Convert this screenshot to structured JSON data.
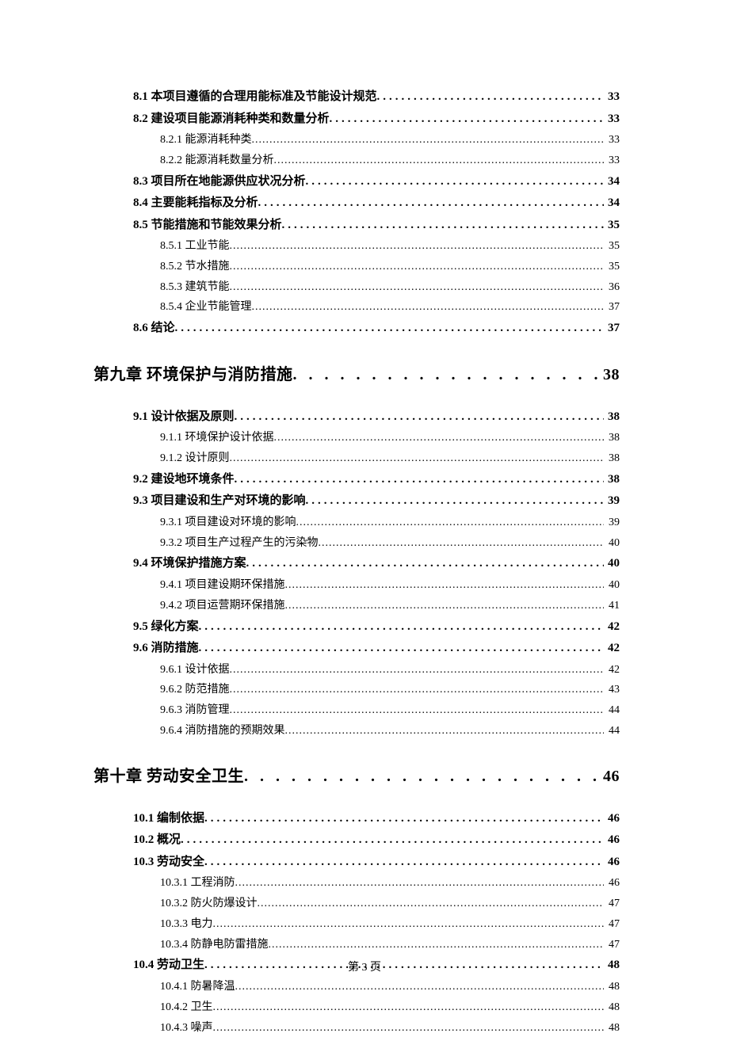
{
  "toc": [
    {
      "level": "lvl-1",
      "title": "8.1 本项目遵循的合理用能标准及节能设计规范",
      "page": "33"
    },
    {
      "level": "lvl-1",
      "title": "8.2 建设项目能源消耗种类和数量分析",
      "page": "33"
    },
    {
      "level": "lvl-2",
      "title": "8.2.1 能源消耗种类",
      "page": "33"
    },
    {
      "level": "lvl-2",
      "title": "8.2.2 能源消耗数量分析",
      "page": "33"
    },
    {
      "level": "lvl-1",
      "title": "8.3 项目所在地能源供应状况分析",
      "page": "34"
    },
    {
      "level": "lvl-1",
      "title": "8.4 主要能耗指标及分析",
      "page": "34"
    },
    {
      "level": "lvl-1",
      "title": "8.5 节能措施和节能效果分析",
      "page": "35"
    },
    {
      "level": "lvl-2",
      "title": "8.5.1 工业节能",
      "page": "35"
    },
    {
      "level": "lvl-2",
      "title": "8.5.2 节水措施",
      "page": "35"
    },
    {
      "level": "lvl-2",
      "title": "8.5.3 建筑节能",
      "page": "36"
    },
    {
      "level": "lvl-2",
      "title": "8.5.4 企业节能管理",
      "page": "37"
    },
    {
      "level": "lvl-1",
      "title": "8.6 结论",
      "page": "37"
    },
    {
      "level": "lvl-chapter",
      "title": "第九章  环境保护与消防措施",
      "page": "38"
    },
    {
      "level": "lvl-1",
      "title": "9.1 设计依据及原则",
      "page": "38"
    },
    {
      "level": "lvl-2",
      "title": "9.1.1 环境保护设计依据",
      "page": "38"
    },
    {
      "level": "lvl-2",
      "title": "9.1.2 设计原则",
      "page": "38"
    },
    {
      "level": "lvl-1",
      "title": "9.2 建设地环境条件",
      "page": "38"
    },
    {
      "level": "lvl-1",
      "title": "9.3  项目建设和生产对环境的影响",
      "page": "39"
    },
    {
      "level": "lvl-2",
      "title": "9.3.1  项目建设对环境的影响",
      "page": "39"
    },
    {
      "level": "lvl-2",
      "title": "9.3.2  项目生产过程产生的污染物",
      "page": "40"
    },
    {
      "level": "lvl-1",
      "title": "9.4  环境保护措施方案",
      "page": "40"
    },
    {
      "level": "lvl-2",
      "title": "9.4.1  项目建设期环保措施",
      "page": "40"
    },
    {
      "level": "lvl-2",
      "title": "9.4.2  项目运营期环保措施",
      "page": "41"
    },
    {
      "level": "lvl-1",
      "title": "9.5 绿化方案",
      "page": "42"
    },
    {
      "level": "lvl-1",
      "title": "9.6 消防措施",
      "page": "42"
    },
    {
      "level": "lvl-2",
      "title": "9.6.1 设计依据",
      "page": "42"
    },
    {
      "level": "lvl-2",
      "title": "9.6.2 防范措施",
      "page": "43"
    },
    {
      "level": "lvl-2",
      "title": "9.6.3 消防管理",
      "page": "44"
    },
    {
      "level": "lvl-2",
      "title": "9.6.4 消防措施的预期效果",
      "page": "44"
    },
    {
      "level": "lvl-chapter",
      "title": "第十章  劳动安全卫生",
      "page": "46"
    },
    {
      "level": "lvl-1",
      "title": "10.1  编制依据",
      "page": "46"
    },
    {
      "level": "lvl-1",
      "title": "10.2 概况",
      "page": "46"
    },
    {
      "level": "lvl-1",
      "title": "10.3  劳动安全",
      "page": "46"
    },
    {
      "level": "lvl-2",
      "title": "10.3.1 工程消防",
      "page": "46"
    },
    {
      "level": "lvl-2",
      "title": "10.3.2 防火防爆设计",
      "page": "47"
    },
    {
      "level": "lvl-2",
      "title": "10.3.3 电力",
      "page": "47"
    },
    {
      "level": "lvl-2",
      "title": "10.3.4 防静电防雷措施",
      "page": "47"
    },
    {
      "level": "lvl-1",
      "title": "10.4 劳动卫生",
      "page": "48"
    },
    {
      "level": "lvl-2",
      "title": "10.4.1 防暑降温",
      "page": "48"
    },
    {
      "level": "lvl-2",
      "title": "10.4.2 卫生",
      "page": "48"
    },
    {
      "level": "lvl-2",
      "title": "10.4.3 噪声",
      "page": "48"
    }
  ],
  "footer": "第 3 页"
}
